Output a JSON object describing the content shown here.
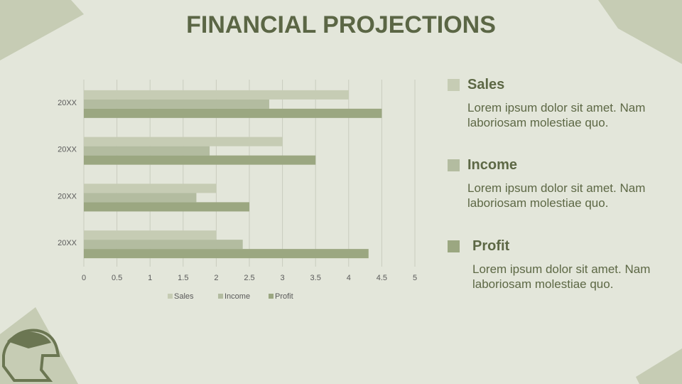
{
  "title": "FINANCIAL PROJECTIONS",
  "notes": [
    {
      "heading": "Sales",
      "text": "Lorem ipsum dolor sit amet. Nam laboriosam molestiae quo."
    },
    {
      "heading": "Income",
      "text": "Lorem ipsum dolor sit amet. Nam laboriosam molestiae quo."
    },
    {
      "heading": "Profit",
      "text": "Lorem ipsum dolor sit amet. Nam laboriosam molestiae quo."
    }
  ],
  "chart_data": {
    "type": "bar",
    "categories": [
      "20XX",
      "20XX",
      "20XX",
      "20XX"
    ],
    "series": [
      {
        "name": "Sales",
        "color": "#c6ccb4",
        "values": [
          4,
          3,
          2,
          2
        ]
      },
      {
        "name": "Income",
        "color": "#b3bca0",
        "values": [
          2.8,
          1.9,
          1.7,
          2.4
        ]
      },
      {
        "name": "Profit",
        "color": "#9ba781",
        "values": [
          4.5,
          3.5,
          2.5,
          4.3
        ]
      }
    ],
    "xlim": [
      0,
      5
    ],
    "xticks": [
      0,
      0.5,
      1,
      1.5,
      2,
      2.5,
      3,
      3.5,
      4,
      4.5,
      5
    ],
    "grid": true,
    "legend": "bottom"
  }
}
